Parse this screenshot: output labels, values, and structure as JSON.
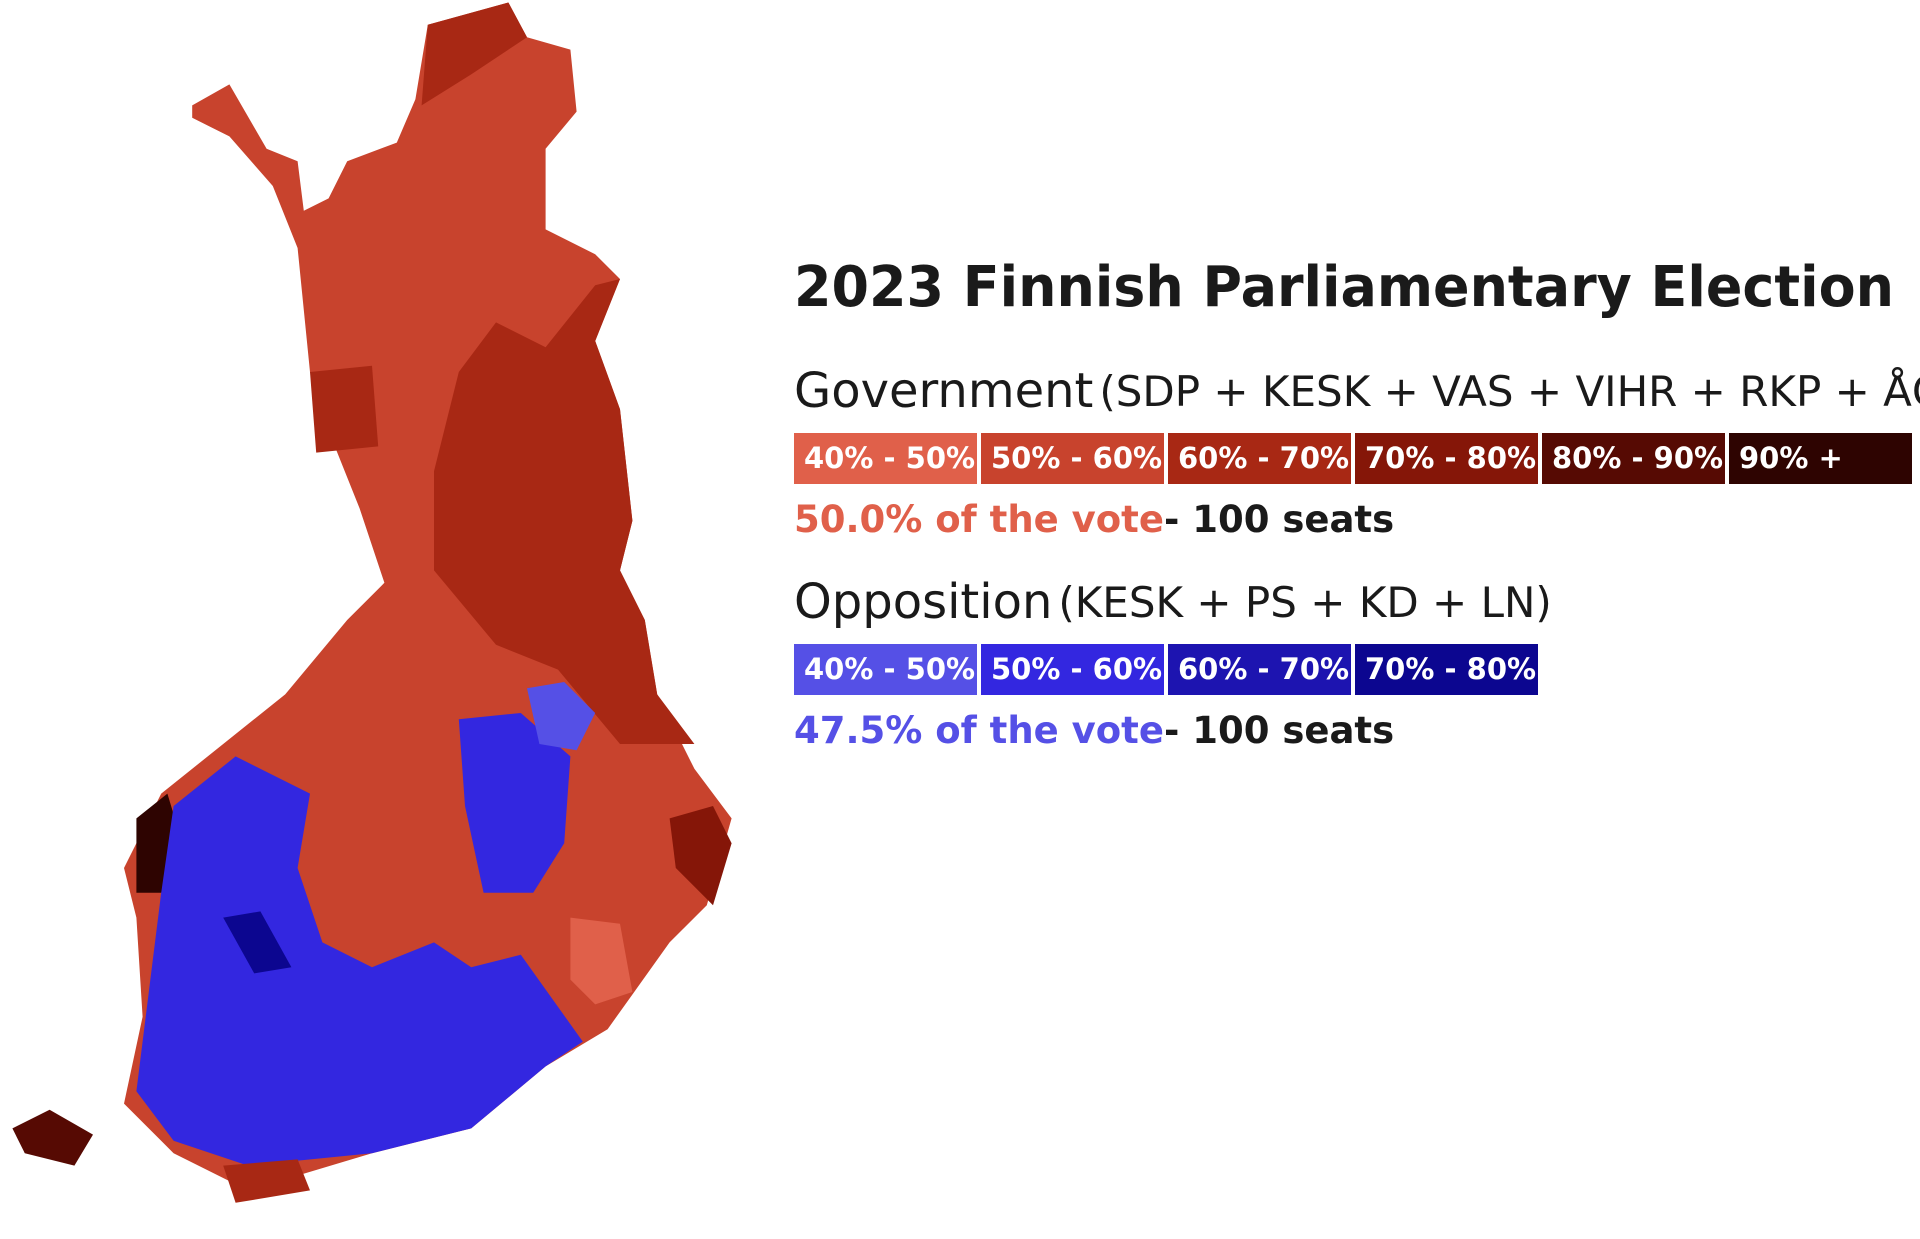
{
  "title": "2023 Finnish Parliamentary Election",
  "blocs": [
    {
      "name": "Government",
      "parties": "(SDP + KESK + VAS + VIHR + RKP + ÅC)",
      "legend": [
        {
          "label": "40% - 50%",
          "color": "#e0604a"
        },
        {
          "label": "50% - 60%",
          "color": "#c8432d"
        },
        {
          "label": "60% - 70%",
          "color": "#a82814"
        },
        {
          "label": "70% - 80%",
          "color": "#851608"
        },
        {
          "label": "80% - 90%",
          "color": "#560a03"
        },
        {
          "label": "90% +",
          "color": "#2e0401"
        }
      ],
      "vote": "50.0% of the vote",
      "seats": "- 100 seats"
    },
    {
      "name": "Opposition",
      "parties": "(KESK + PS + KD + LN)",
      "legend": [
        {
          "label": "40% - 50%",
          "color": "#5550e6"
        },
        {
          "label": "50% - 60%",
          "color": "#3327e0"
        },
        {
          "label": "60% - 70%",
          "color": "#1d14b0"
        },
        {
          "label": "70% - 80%",
          "color": "#0c0690"
        }
      ],
      "vote": "47.5% of the vote",
      "seats": "- 100 seats"
    }
  ]
}
